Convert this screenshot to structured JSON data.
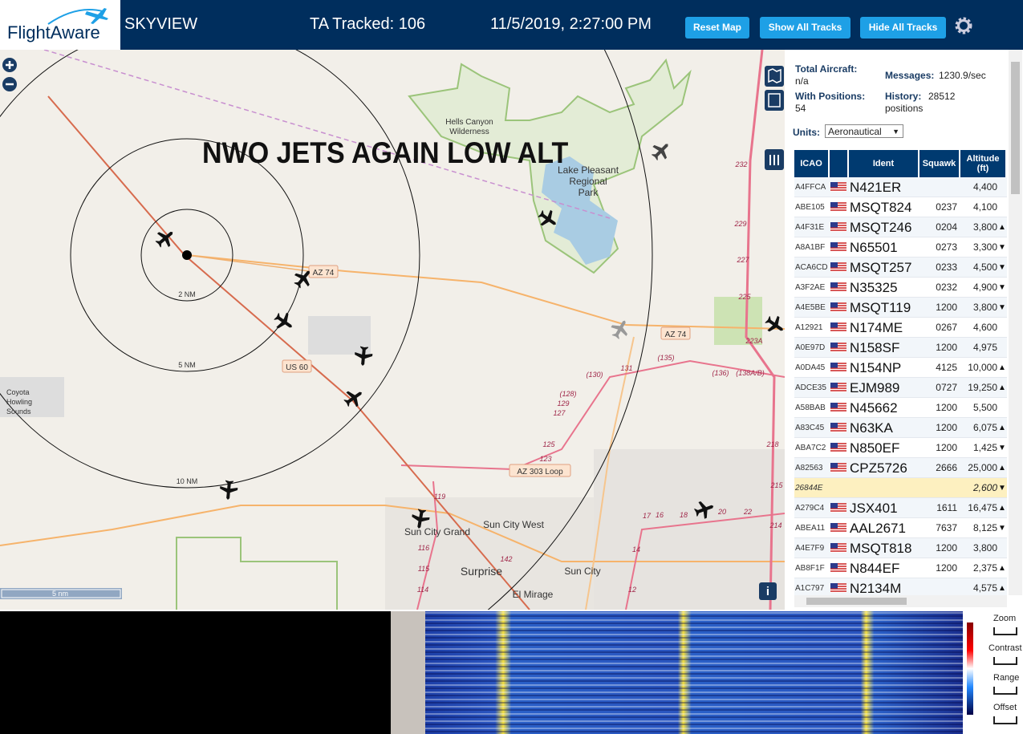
{
  "header": {
    "logo": "FlightAware",
    "app": "SKYVIEW",
    "tracked": "TA Tracked: 106",
    "datetime": "11/5/2019, 2:27:00 PM",
    "buttons": [
      "Reset Map",
      "Show All Tracks",
      "Hide All Tracks"
    ]
  },
  "map": {
    "annotation": "NWO JETS AGAIN LOW ALT",
    "scale": "5 nm",
    "labels": [
      "Hells Canyon",
      "Wilderness",
      "Lake Pleasant",
      "Regional",
      "Park",
      "Sun City Grand",
      "Sun City West",
      "Surprise",
      "Sun City",
      "El Mirage",
      "2 NM",
      "5 NM",
      "10 NM",
      "Coyota",
      "Howling",
      "Sounds"
    ],
    "shields": [
      "AZ 74",
      "AZ 74",
      "US 60",
      "AZ 303 Loop"
    ],
    "road_numbers": [
      "(130)",
      "131",
      "(135)",
      "(136)",
      "(138A/B)",
      "(128)",
      "129",
      "127",
      "125",
      "123",
      "119",
      "116",
      "115",
      "114",
      "142",
      "232",
      "229",
      "227",
      "225",
      "223A",
      "218",
      "215",
      "214",
      "14",
      "12",
      "17",
      "16",
      "18",
      "20",
      "22"
    ]
  },
  "stats": {
    "total_label": "Total Aircraft:",
    "total_value": "n/a",
    "positions_label": "With Positions:",
    "positions_value": "54",
    "messages_label": "Messages:",
    "messages_value": "1230.9/sec",
    "history_label": "History:",
    "history_value": "28512 positions",
    "units_label": "Units:",
    "units_value": "Aeronautical"
  },
  "table": {
    "columns": [
      "ICAO",
      "Ident",
      "Squawk",
      "Altitude (ft)"
    ],
    "rows": [
      [
        "A4FFCA",
        "N421ER",
        "",
        "4,400",
        ""
      ],
      [
        "ABE105",
        "MSQT824",
        "0237",
        "4,100",
        ""
      ],
      [
        "A4F31E",
        "MSQT246",
        "0204",
        "3,800",
        "▲"
      ],
      [
        "A8A1BF",
        "N65501",
        "0273",
        "3,300",
        "▼"
      ],
      [
        "ACA6CD",
        "MSQT257",
        "0233",
        "4,500",
        "▼"
      ],
      [
        "A3F2AE",
        "N35325",
        "0232",
        "4,900",
        "▼"
      ],
      [
        "A4E5BE",
        "MSQT119",
        "1200",
        "3,800",
        "▼"
      ],
      [
        "A12921",
        "N174ME",
        "0267",
        "4,600",
        ""
      ],
      [
        "A0E97D",
        "N158SF",
        "1200",
        "4,975",
        ""
      ],
      [
        "A0DA45",
        "N154NP",
        "4125",
        "10,000",
        "▲"
      ],
      [
        "ADCE35",
        "EJM989",
        "0727",
        "19,250",
        "▲"
      ],
      [
        "A58BAB",
        "N45662",
        "1200",
        "5,500",
        ""
      ],
      [
        "A83C45",
        "N63KA",
        "1200",
        "6,075",
        "▲"
      ],
      [
        "ABA7C2",
        "N850EF",
        "1200",
        "1,425",
        "▼"
      ],
      [
        "A82563",
        "CPZ5726",
        "2666",
        "25,000",
        "▲"
      ],
      [
        "26844E",
        "",
        "",
        "2,600",
        "▼"
      ],
      [
        "A279C4",
        "JSX401",
        "1611",
        "16,475",
        "▲"
      ],
      [
        "ABEA11",
        "AAL2671",
        "7637",
        "8,125",
        "▼"
      ],
      [
        "A4E7F9",
        "MSQT818",
        "1200",
        "3,800",
        ""
      ],
      [
        "AB8F1F",
        "N844EF",
        "1200",
        "2,375",
        "▲"
      ],
      [
        "A1C797",
        "N2134M",
        "",
        "4,575",
        "▲"
      ]
    ]
  },
  "spectrum": {
    "controls": [
      "Zoom",
      "Contrast",
      "Range",
      "Offset"
    ]
  }
}
